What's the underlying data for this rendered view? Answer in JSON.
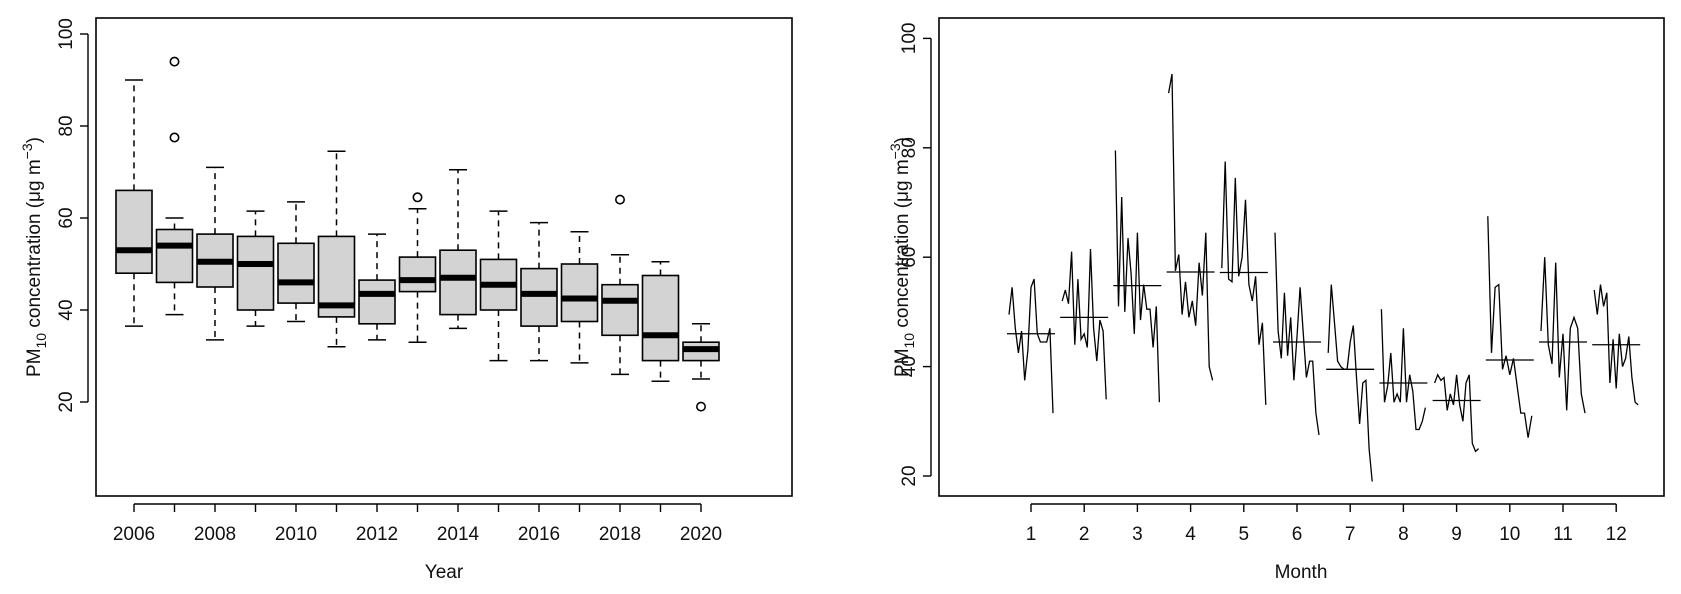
{
  "chart_data": [
    {
      "type": "box",
      "xlabel": "Year",
      "ylabel": "PM10 concentration (μg m−3)",
      "ylabel_parts": {
        "pre": "PM",
        "sub": "10",
        "mid": " concentration (μg m",
        "sup": "−3",
        "post": ")"
      },
      "ylim": [
        10,
        100
      ],
      "yticks": [
        "20",
        "40",
        "60",
        "80",
        "100"
      ],
      "xtick_labels": [
        "2006",
        "2008",
        "2010",
        "2012",
        "2014",
        "2016",
        "2018",
        "2020"
      ],
      "grid": false,
      "box_fill": "#d3d3d3",
      "categories": [
        "2006",
        "2007",
        "2008",
        "2009",
        "2010",
        "2011",
        "2012",
        "2013",
        "2014",
        "2015",
        "2016",
        "2017",
        "2018",
        "2019",
        "2020"
      ],
      "boxes": [
        {
          "year": "2006",
          "min": 36.5,
          "q1": 48,
          "median": 53,
          "q3": 66,
          "max": 90,
          "outliers": []
        },
        {
          "year": "2007",
          "min": 39,
          "q1": 46,
          "median": 54,
          "q3": 57.5,
          "max": 60,
          "outliers": [
            77.5,
            94
          ]
        },
        {
          "year": "2008",
          "min": 33.5,
          "q1": 45,
          "median": 50.5,
          "q3": 56.5,
          "max": 71,
          "outliers": []
        },
        {
          "year": "2009",
          "min": 36.5,
          "q1": 40,
          "median": 50,
          "q3": 56,
          "max": 61.5,
          "outliers": []
        },
        {
          "year": "2010",
          "min": 37.5,
          "q1": 41.5,
          "median": 46,
          "q3": 54.5,
          "max": 63.5,
          "outliers": []
        },
        {
          "year": "2011",
          "min": 32,
          "q1": 38.5,
          "median": 41,
          "q3": 56,
          "max": 74.5,
          "outliers": []
        },
        {
          "year": "2012",
          "min": 33.5,
          "q1": 37,
          "median": 43.5,
          "q3": 46.5,
          "max": 56.5,
          "outliers": []
        },
        {
          "year": "2013",
          "min": 33,
          "q1": 44,
          "median": 46.5,
          "q3": 51.5,
          "max": 62,
          "outliers": [
            64.5
          ]
        },
        {
          "year": "2014",
          "min": 36,
          "q1": 39,
          "median": 47,
          "q3": 53,
          "max": 70.5,
          "outliers": []
        },
        {
          "year": "2015",
          "min": 29,
          "q1": 40,
          "median": 45.5,
          "q3": 51,
          "max": 61.5,
          "outliers": []
        },
        {
          "year": "2016",
          "min": 29,
          "q1": 36.5,
          "median": 43.5,
          "q3": 49,
          "max": 59,
          "outliers": []
        },
        {
          "year": "2017",
          "min": 28.5,
          "q1": 37.5,
          "median": 42.5,
          "q3": 50,
          "max": 57,
          "outliers": []
        },
        {
          "year": "2018",
          "min": 26,
          "q1": 34.5,
          "median": 42,
          "q3": 45.5,
          "max": 52,
          "outliers": [
            64
          ]
        },
        {
          "year": "2019",
          "min": 24.5,
          "q1": 29,
          "median": 34.5,
          "q3": 47.5,
          "max": 50.5,
          "outliers": []
        },
        {
          "year": "2020",
          "min": 25,
          "q1": 29,
          "median": 31.5,
          "q3": 33,
          "max": 37,
          "outliers": [
            19
          ]
        }
      ]
    },
    {
      "type": "line",
      "xlabel": "Month",
      "ylabel": "PM10 concentration (μg m−3)",
      "ylabel_parts": {
        "pre": "PM",
        "sub": "10",
        "mid": " concentration (μg m",
        "sup": "−3",
        "post": ")"
      },
      "ylim": [
        18,
        100
      ],
      "yticks": [
        "20",
        "40",
        "60",
        "80",
        "100"
      ],
      "xtick_labels": [
        "1",
        "2",
        "3",
        "4",
        "5",
        "6",
        "7",
        "8",
        "9",
        "10",
        "11",
        "12"
      ],
      "grid": false,
      "series": [
        {
          "month": 1,
          "mean": 46,
          "values": [
            49.5,
            54.5,
            47,
            42.5,
            46.5,
            37.5,
            43,
            54.5,
            56,
            46,
            44.5,
            44.5,
            44.5,
            47,
            31.5
          ]
        },
        {
          "month": 2,
          "mean": 49,
          "values": [
            52,
            54,
            51.5,
            61,
            44,
            56,
            45,
            46,
            43.5,
            61.5,
            47,
            41,
            48.5,
            46.5,
            34
          ]
        },
        {
          "month": 3,
          "mean": 54.8,
          "values": [
            79.5,
            51,
            71,
            50,
            63.5,
            57,
            46,
            64.5,
            48.5,
            55,
            50.5,
            50.5,
            43.5,
            51,
            33.5
          ]
        },
        {
          "month": 4,
          "mean": 57.3,
          "values": [
            90,
            93.5,
            57.5,
            60.5,
            49.5,
            55.5,
            49,
            52,
            47.5,
            59,
            53,
            64.5,
            40,
            37.5
          ]
        },
        {
          "month": 5,
          "mean": 57.2,
          "values": [
            58,
            77.5,
            56,
            55.5,
            74.5,
            56.5,
            60,
            70.5,
            55,
            52,
            56.5,
            44,
            48,
            33
          ]
        },
        {
          "month": 6,
          "mean": 44.5,
          "values": [
            64.5,
            46.5,
            41.5,
            53.5,
            42,
            49,
            37.5,
            45.5,
            54.5,
            46,
            38,
            41,
            41,
            31.5,
            27.5
          ]
        },
        {
          "month": 7,
          "mean": 39.5,
          "values": [
            42.5,
            55,
            48,
            41,
            40,
            39.5,
            39.5,
            44.5,
            47.5,
            38,
            29.5,
            37,
            37.5,
            25,
            19
          ]
        },
        {
          "month": 8,
          "mean": 37,
          "values": [
            50.5,
            33.5,
            36.5,
            42.5,
            33.5,
            35,
            33.5,
            47,
            33.5,
            38.5,
            35.5,
            28.5,
            28.5,
            30,
            32.5
          ]
        },
        {
          "month": 9,
          "mean": 33.8,
          "values": [
            37,
            38.5,
            37.5,
            38,
            32,
            35,
            33,
            38.5,
            33,
            30,
            37,
            38.5,
            26,
            24.5,
            25
          ]
        },
        {
          "month": 10,
          "mean": 41.2,
          "values": [
            67.5,
            42.5,
            54.5,
            55,
            39.5,
            42,
            38.5,
            41.5,
            36.5,
            31.5,
            31.5,
            27,
            31
          ]
        },
        {
          "month": 11,
          "mean": 44.5,
          "values": [
            46.5,
            60,
            44,
            40.5,
            59,
            38,
            46,
            32,
            47,
            49,
            47,
            35,
            31.5
          ]
        },
        {
          "month": 12,
          "mean": 44,
          "values": [
            54,
            49.5,
            55,
            51,
            53.5,
            37,
            45,
            36,
            46,
            40,
            41.5,
            45.5,
            38,
            33.5,
            33
          ]
        }
      ]
    }
  ]
}
